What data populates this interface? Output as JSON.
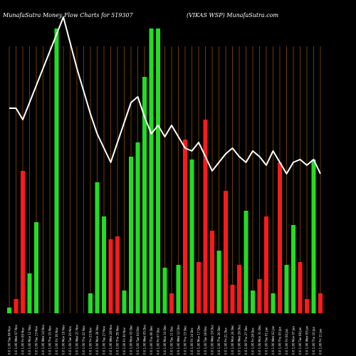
{
  "header": {
    "left": "MunafaSutra  Money Flow  Charts for 519307",
    "right": "(VIKAS WSP) MunafaSutra.com"
  },
  "chart_data": {
    "type": "bar",
    "title": "MunafaSutra  Money Flow  Charts for 519307",
    "subtitle": "(VIKAS WSP) MunafaSutra.com",
    "colors": {
      "up": "#22dd22",
      "down": "#ff1a1a",
      "line": "#ffffff",
      "grid": "#b5660d",
      "background": "#000000"
    },
    "categories": [
      "Fri 11 Jan 2019",
      "Thu 10 Jan 2019",
      "Wed 09 Jan 2019",
      "Tue 08 Jan 2019",
      "Mon 07 Jan 2019",
      "Fri 04 Jan 2019",
      "Thu 03 Jan 2019",
      "Wed 02 Jan 2019",
      "Tue 01 Jan 2019",
      "Mon 31 Dec 2018",
      "Fri 28 Dec 2018",
      "Thu 27 Dec 2018",
      "Wed 26 Dec 2018",
      "Mon 24 Dec 2018",
      "Fri 21 Dec 2018",
      "Thu 20 Dec 2018",
      "Wed 19 Dec 2018",
      "Tue 18 Dec 2018",
      "Mon 17 Dec 2018",
      "Fri 14 Dec 2018",
      "Thu 13 Dec 2018",
      "Wed 12 Dec 2018",
      "Tue 11 Dec 2018",
      "Mon 10 Dec 2018",
      "Fri 07 Dec 2018",
      "Thu 06 Dec 2018",
      "Wed 05 Dec 2018",
      "Tue 04 Dec 2018",
      "Mon 03 Dec 2018",
      "Fri 30 Nov 2018",
      "Thu 29 Nov 2018",
      "Wed 28 Nov 2018",
      "Tue 27 Nov 2018",
      "Mon 26 Nov 2018",
      "Fri 23 Nov 2018",
      "Thu 22 Nov 2018",
      "Wed 21 Nov 2018",
      "Tue 20 Nov 2018",
      "Mon 19 Nov 2018",
      "Fri 16 Nov 2018",
      "Thu 15 Nov 2018",
      "Wed 14 Nov 2018",
      "Tue 13 Nov 2018",
      "Mon 12 Nov 2018",
      "Fri 09 Nov 2018",
      "Wed 07 Nov 2018",
      "Tue 06 Nov 2018"
    ],
    "xlabels": [
      "Tue 06 Nov 2018",
      "Wed 07 Nov 2018",
      "Fri 09 Nov 2018",
      "Mon 12 Nov 2018",
      "Tue 13 Nov 2018",
      "Wed 14 Nov 2018",
      "Thu 15 Nov 2018",
      "Fri 16 Nov 2018",
      "Mon 19 Nov 2018",
      "Tue 20 Nov 2018",
      "Wed 21 Nov 2018",
      "Thu 22 Nov 2018",
      "Fri 23 Nov 2018",
      "Mon 26 Nov 2018",
      "Tue 27 Nov 2018",
      "Wed 28 Nov 2018",
      "Thu 29 Nov 2018",
      "Fri 30 Nov 2018",
      "Mon 03 Dec 2018",
      "Tue 04 Dec 2018",
      "Wed 05 Dec 2018",
      "Thu 06 Dec 2018",
      "Fri 07 Dec 2018",
      "Mon 10 Dec 2018",
      "Tue 11 Dec 2018",
      "Wed 12 Dec 2018",
      "Thu 13 Dec 2018",
      "Fri 14 Dec 2018",
      "Mon 17 Dec 2018",
      "Tue 18 Dec 2018",
      "Wed 19 Dec 2018",
      "Thu 20 Dec 2018",
      "Fri 21 Dec 2018",
      "Mon 24 Dec 2018",
      "Wed 26 Dec 2018",
      "Thu 27 Dec 2018",
      "Fri 28 Dec 2018",
      "Mon 31 Dec 2018",
      "Tue 01 Jan 2019",
      "Wed 02 Jan 2019",
      "Thu 03 Jan 2019",
      "Fri 04 Jan 2019",
      "Mon 07 Jan 2019",
      "Tue 08 Jan 2019",
      "Wed 09 Jan 2019",
      "Thu 10 Jan 2019",
      "Fri 11 Jan 2019"
    ],
    "tick_labels": [
      "0.0 1.00 Tue 06 Nov",
      "0.0 1.00 Wed 07 Nov",
      "0.0 1.00 Fri 09 Nov",
      "0.0 1.00 Mon 12 Nov",
      "0.0 1.00 Tue 13 Nov",
      "0.0 1.00 Wed 14 Nov",
      "0.0 1.00 Thu 15 Nov",
      "0.0 1.00 Fri 16 Nov",
      "0.0 1.00 Mon 19 Nov",
      "0.0 1.00 Tue 20 Nov",
      "0.0 1.00 Wed 21 Nov",
      "0.0 1.00 Thu 22 Nov",
      "0.0 1.00 Fri 23 Nov",
      "0.0 1.00 Mon 26 Nov",
      "0.0 1.00 Tue 27 Nov",
      "0.0 1.00 Wed 28 Nov",
      "0.0 1.00 Thu 29 Nov",
      "0.0 1.00 Fri 30 Nov",
      "0.0 1.00 Mon 03 Dec",
      "0.0 1.00 Tue 04 Dec",
      "0.0 1.00 Wed 05 Dec",
      "0.0 1.00 Thu 06 Dec",
      "0.0 1.00 Fri 07 Dec",
      "0.0 1.00 Mon 10 Dec",
      "0.0 1.00 Tue 11 Dec",
      "0.0 1.00 Wed 12 Dec",
      "0.0 1.00 Thu 13 Dec",
      "0.0 1.00 Fri 14 Dec",
      "0.0 1.00 Mon 17 Dec",
      "0.0 1.00 Tue 18 Dec",
      "0.0 1.00 Wed 19 Dec",
      "0.0 1.00 Thu 20 Dec",
      "0.0 1.00 Fri 21 Dec",
      "0.0 1.00 Mon 24 Dec",
      "0.0 1.00 Wed 26 Dec",
      "0.0 1.00 Thu 27 Dec",
      "0.0 1.00 Fri 28 Dec",
      "0.0 1.00 Mon 31 Dec",
      "0.0 1.00 Tue 01 Jan",
      "0.0 1.00 Wed 02 Jan",
      "0.0 1.00 Thu 03 Jan",
      "0.0 1.00 Fri 04 Jan",
      "0.0 1.00 Mon 07 Jan",
      "0.0 1.00 Tue 08 Jan",
      "0.0 1.00 Wed 09 Jan",
      "0.0 1.00 Thu 10 Jan",
      "0.0 1.00 Fri 11 Jan"
    ],
    "series": [
      {
        "kind": "bars",
        "values": [
          2,
          5,
          50,
          14,
          32,
          0,
          0,
          100,
          0,
          0,
          0,
          0,
          7,
          46,
          34,
          26,
          27,
          8,
          55,
          60,
          83,
          100,
          100,
          16,
          7,
          17,
          61,
          54,
          18,
          68,
          29,
          22,
          43,
          10,
          17,
          36,
          8,
          12,
          34,
          7,
          53,
          17,
          31,
          18,
          5,
          54,
          7
        ],
        "direction": [
          "up",
          "down",
          "down",
          "up",
          "up",
          "up",
          "up",
          "up",
          "up",
          "up",
          "up",
          "up",
          "up",
          "up",
          "up",
          "down",
          "down",
          "up",
          "up",
          "up",
          "up",
          "up",
          "up",
          "up",
          "down",
          "up",
          "down",
          "up",
          "down",
          "down",
          "down",
          "up",
          "down",
          "down",
          "down",
          "up",
          "up",
          "down",
          "down",
          "up",
          "down",
          "up",
          "up",
          "down",
          "down",
          "up",
          "down"
        ]
      },
      {
        "kind": "line",
        "values": [
          72,
          72,
          68,
          74,
          80,
          86,
          92,
          98,
          104,
          95,
          86,
          78,
          70,
          63,
          58,
          53,
          60,
          67,
          74,
          76,
          69,
          63,
          66,
          62,
          66,
          62,
          58,
          57,
          60,
          55,
          50,
          53,
          56,
          58,
          55,
          53,
          57,
          55,
          52,
          57,
          53,
          49,
          53,
          54,
          52,
          54,
          49
        ]
      }
    ],
    "ylim": [
      0,
      110
    ],
    "grid": true
  }
}
